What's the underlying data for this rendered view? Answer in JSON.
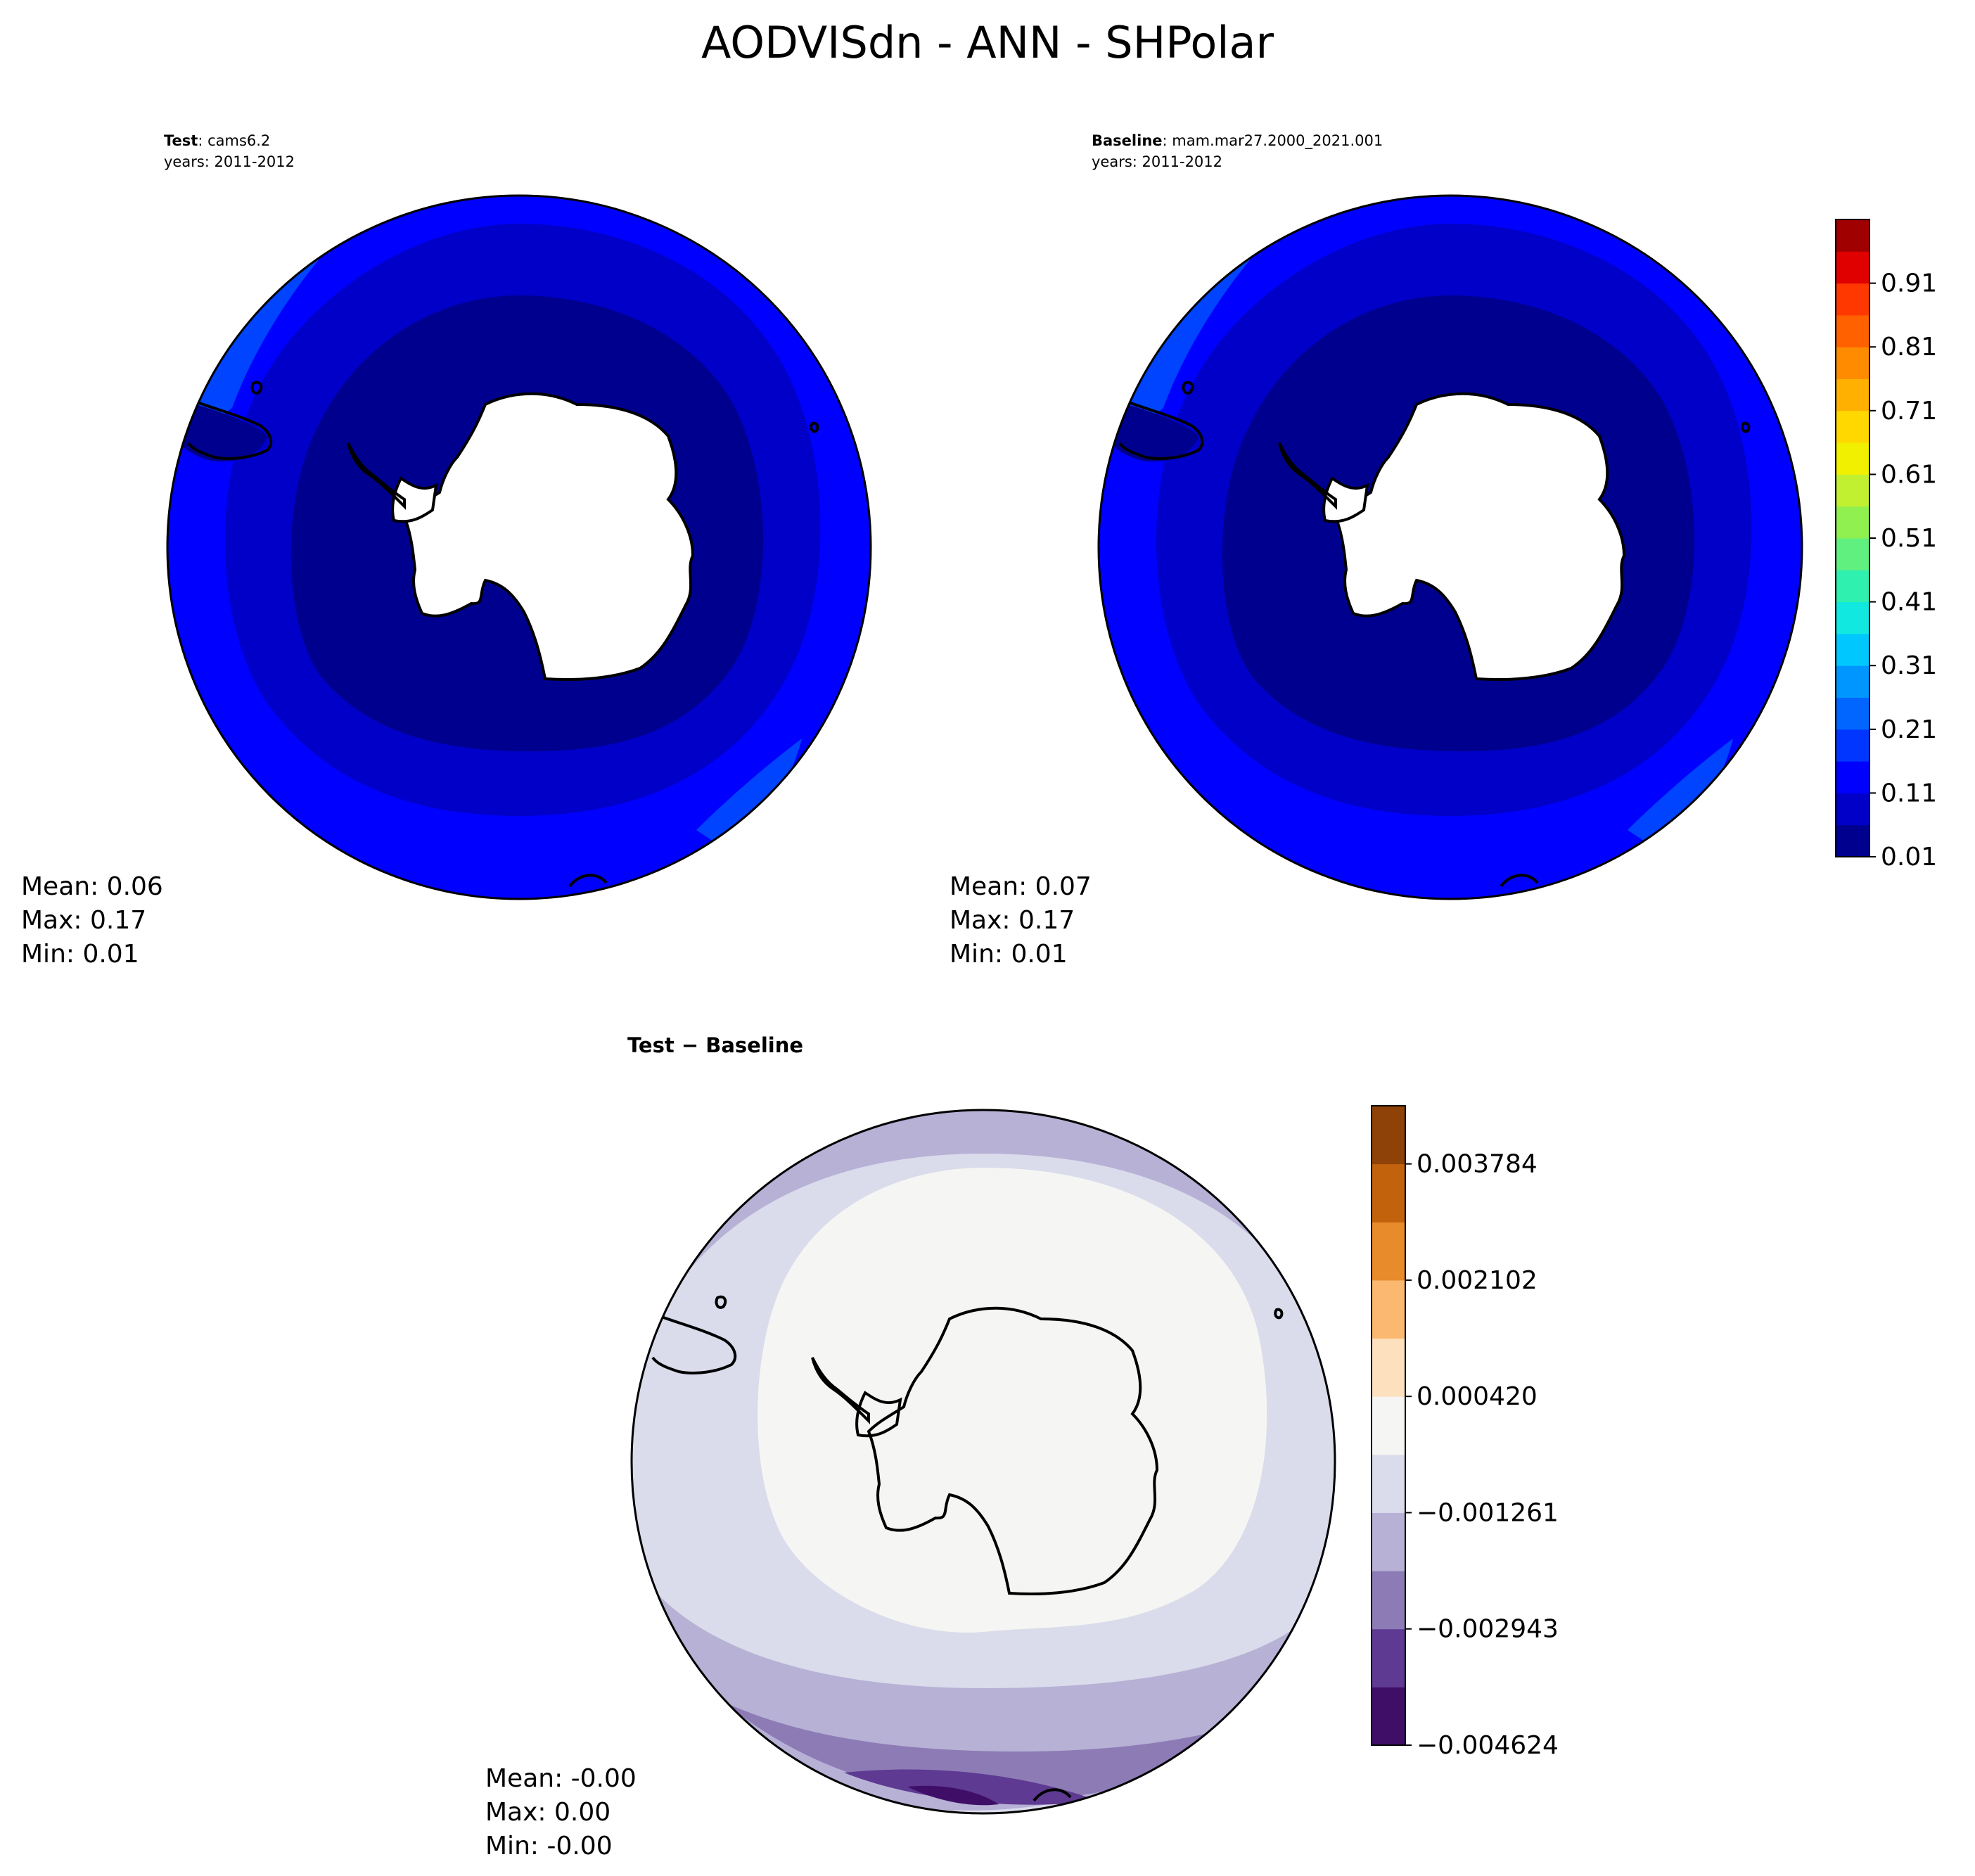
{
  "title": "AODVISdn - ANN - SHPolar",
  "panels": {
    "test": {
      "label_bold": "Test",
      "label_rest": ": cams6.2",
      "years": "years: 2011-2012",
      "stats": [
        "Mean:  0.06",
        "Max:  0.17",
        "Min:  0.01"
      ]
    },
    "baseline": {
      "label_bold": "Baseline",
      "label_rest": ": mam.mar27.2000_2021.001",
      "years": "years: 2011-2012",
      "stats": [
        "Mean:  0.07",
        "Max:  0.17",
        "Min:  0.01"
      ]
    },
    "diff": {
      "label": "Test − Baseline",
      "stats": [
        "Mean: -0.00",
        "Max:  0.00",
        "Min: -0.00"
      ]
    }
  },
  "colorbars": {
    "main": {
      "ticks": [
        "0.01",
        "0.11",
        "0.21",
        "0.31",
        "0.41",
        "0.51",
        "0.61",
        "0.71",
        "0.81",
        "0.91"
      ],
      "colors": [
        "#00008f",
        "#0000c8",
        "#0000ff",
        "#0036ff",
        "#0066ff",
        "#0096ff",
        "#00c8ff",
        "#10e8e0",
        "#30f0b0",
        "#60f080",
        "#90f050",
        "#c0f030",
        "#f0f000",
        "#ffd800",
        "#ffb000",
        "#ff8c00",
        "#ff6000",
        "#ff3800",
        "#e00000",
        "#a00000"
      ]
    },
    "diff": {
      "ticks": [
        "−0.004624",
        "−0.002943",
        "−0.001261",
        "0.000420",
        "0.002102",
        "0.003784"
      ],
      "colors": [
        "#3f0f68",
        "#5e3a92",
        "#8d7bb6",
        "#b6b1d5",
        "#dadbeb",
        "#f5f5f3",
        "#fde1bf",
        "#fbb870",
        "#e88b2a",
        "#c3620c",
        "#8f4207"
      ]
    }
  },
  "chart_data": [
    {
      "type": "heatmap",
      "title": "Test : cams6.2",
      "subtitle": "years: 2011-2012",
      "projection": "south polar stereographic",
      "levels": [
        0.01,
        0.06,
        0.11,
        0.16,
        0.21
      ],
      "mean": 0.06,
      "max": 0.17,
      "min": 0.01
    },
    {
      "type": "heatmap",
      "title": "Baseline : mam.mar27.2000_2021.001",
      "subtitle": "years: 2011-2012",
      "projection": "south polar stereographic",
      "levels": [
        0.01,
        0.06,
        0.11,
        0.16,
        0.21
      ],
      "mean": 0.07,
      "max": 0.17,
      "min": 0.01
    },
    {
      "type": "heatmap",
      "title": "Test − Baseline",
      "projection": "south polar stereographic",
      "levels": [
        -0.004624,
        -0.002943,
        -0.001261,
        0.00042,
        0.002102,
        0.003784
      ],
      "mean": -0.0,
      "max": 0.0,
      "min": -0.0
    }
  ]
}
